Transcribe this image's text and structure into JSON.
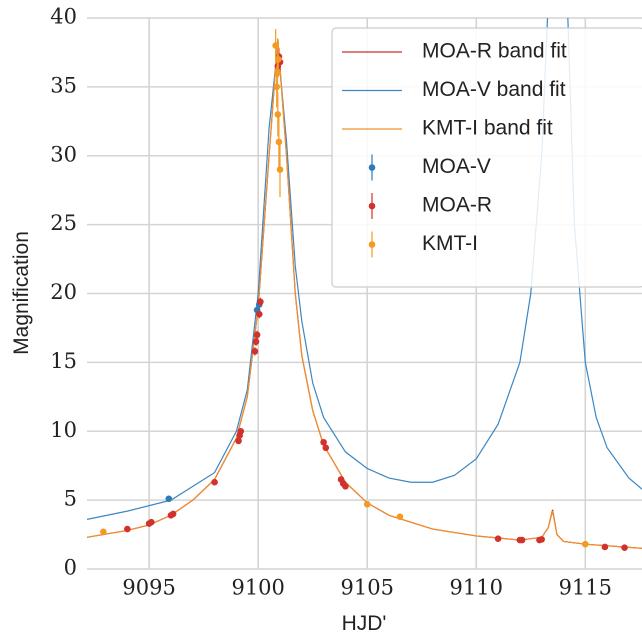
{
  "chart_data": {
    "type": "line",
    "xlabel": "HJD'",
    "ylabel": "Magnification",
    "xlim": [
      9092.15,
      9117.6
    ],
    "ylim": [
      0,
      40
    ],
    "xticks": [
      9095,
      9100,
      9105,
      9110,
      9115
    ],
    "yticks": [
      0,
      5,
      10,
      15,
      20,
      25,
      30,
      35,
      40
    ],
    "grid": true,
    "legend": "upper right",
    "series": [
      {
        "name": "MOA-R band fit",
        "kind": "line",
        "color": "#c9302c",
        "x": [
          9092.15,
          9094,
          9095,
          9096,
          9097,
          9098,
          9099,
          9099.5,
          9100,
          9100.5,
          9100.9,
          9101.3,
          9101.7,
          9102,
          9102.5,
          9103,
          9104,
          9105,
          9106,
          9108,
          9110,
          9112,
          9113,
          9113.3,
          9113.5,
          9113.7,
          9114,
          9115,
          9117.6
        ],
        "values": [
          2.3,
          2.8,
          3.2,
          3.9,
          5,
          6.5,
          9.5,
          12.5,
          19,
          30,
          38.5,
          30,
          20,
          15.5,
          11.5,
          9,
          6.3,
          4.8,
          3.9,
          2.9,
          2.4,
          2.1,
          2.3,
          3,
          4.3,
          2.5,
          2,
          1.8,
          1.5
        ]
      },
      {
        "name": "MOA-V band fit",
        "kind": "line",
        "color": "#3a87c4",
        "x": [
          9092.15,
          9094,
          9096,
          9098,
          9099,
          9099.5,
          9100,
          9100.5,
          9100.9,
          9101.3,
          9101.7,
          9102,
          9102.5,
          9103,
          9104,
          9105,
          9106,
          9107,
          9108,
          9109,
          9110,
          9111,
          9112,
          9112.5,
          9113,
          9113.4,
          9114.1,
          9114.5,
          9115,
          9115.5,
          9116,
          9117,
          9117.6
        ],
        "values": [
          3.6,
          4.2,
          5,
          7,
          10,
          13,
          20,
          32,
          38,
          31,
          22,
          18,
          13.5,
          11,
          8.5,
          7.3,
          6.6,
          6.3,
          6.3,
          6.8,
          8,
          10.5,
          15,
          20,
          30,
          45,
          45,
          25,
          15,
          11,
          8.8,
          6.6,
          5.8
        ]
      },
      {
        "name": "KMT-I band fit",
        "kind": "line",
        "color": "#f0902a",
        "x": [
          9092.15,
          9094,
          9095,
          9096,
          9097,
          9098,
          9099,
          9099.5,
          9100,
          9100.5,
          9100.9,
          9101.3,
          9101.7,
          9102,
          9102.5,
          9103,
          9104,
          9105,
          9106,
          9108,
          9110,
          9112,
          9113,
          9113.3,
          9113.5,
          9113.7,
          9114,
          9115,
          9117.6
        ],
        "values": [
          2.3,
          2.8,
          3.2,
          3.9,
          5,
          6.5,
          9.5,
          12.5,
          19,
          30,
          38.5,
          30,
          20,
          15.5,
          11.5,
          9,
          6.3,
          4.8,
          3.9,
          2.9,
          2.4,
          2.1,
          2.3,
          3,
          4.2,
          2.5,
          2,
          1.8,
          1.5
        ]
      },
      {
        "name": "MOA-V",
        "kind": "scatter",
        "color": "#2f7ab8",
        "x": [
          9095.9,
          9099.95,
          9100.05
        ],
        "values": [
          5.1,
          18.8,
          19.2
        ],
        "errors": [
          0.2,
          0.4,
          0.4
        ]
      },
      {
        "name": "MOA-R",
        "kind": "scatter",
        "color": "#d2322d",
        "x": [
          9094,
          9095,
          9095.1,
          9096,
          9096.1,
          9098,
          9099.1,
          9099.15,
          9099.2,
          9099.85,
          9099.9,
          9099.95,
          9100.05,
          9100.1,
          9100.9,
          9100.95,
          9101,
          9103,
          9103.1,
          9103.8,
          9103.9,
          9104,
          9111,
          9112,
          9112.1,
          9112.9,
          9113,
          9115.9,
          9116.8
        ],
        "values": [
          2.9,
          3.3,
          3.4,
          3.9,
          4,
          6.3,
          9.3,
          9.7,
          10,
          15.8,
          16.5,
          17,
          18.5,
          19.4,
          36.5,
          37.2,
          36.8,
          9.2,
          8.8,
          6.5,
          6.2,
          6,
          2.2,
          2.1,
          2.1,
          2.1,
          2.15,
          1.6,
          1.55
        ],
        "errors": [
          0.1,
          0.1,
          0.1,
          0.1,
          0.1,
          0.15,
          0.2,
          0.2,
          0.2,
          0.3,
          0.3,
          0.3,
          0.3,
          0.3,
          0.6,
          0.6,
          0.6,
          0.2,
          0.2,
          0.15,
          0.15,
          0.15,
          0.1,
          0.1,
          0.1,
          0.1,
          0.1,
          0.1,
          0.1
        ]
      },
      {
        "name": "KMT-I",
        "kind": "scatter",
        "color": "#f39a22",
        "x": [
          9092.9,
          9100.8,
          9100.85,
          9100.88,
          9100.9,
          9100.92,
          9100.95,
          9101,
          9105,
          9106.5,
          9115
        ],
        "values": [
          2.7,
          38,
          35,
          36,
          33,
          37,
          31,
          29,
          4.7,
          3.8,
          1.8
        ],
        "errors": [
          0.1,
          1.2,
          1.5,
          1.4,
          1.6,
          1.3,
          1.8,
          2,
          0.15,
          0.1,
          0.1
        ]
      }
    ]
  }
}
